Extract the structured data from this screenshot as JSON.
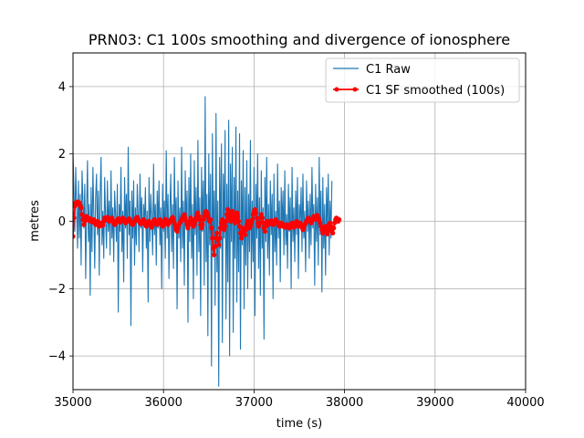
{
  "chart_data": {
    "type": "line",
    "title": "PRN03: C1 100s smoothing and divergence of ionosphere",
    "xlabel": "time (s)",
    "ylabel": "metres",
    "xlim": [
      35000,
      40000
    ],
    "ylim": [
      -5,
      5
    ],
    "xticks": [
      35000,
      36000,
      37000,
      38000,
      39000,
      40000
    ],
    "yticks": [
      -4,
      -2,
      0,
      2,
      4
    ],
    "grid": true,
    "legend_position": "top-right",
    "series": [
      {
        "name": "C1 Raw",
        "color": "#1f77b4",
        "style": "line",
        "x_start": 35000,
        "x_step": 10,
        "y": [
          2.1,
          0.9,
          -0.3,
          1.6,
          0.4,
          -0.8,
          1.2,
          -0.5,
          0.8,
          -1.3,
          1.5,
          0.6,
          -0.2,
          1.1,
          -1.7,
          0.3,
          1.8,
          -0.6,
          0.5,
          -2.2,
          1.0,
          -0.9,
          1.6,
          0.2,
          -1.4,
          0.7,
          1.4,
          -0.4,
          0.9,
          -1.6,
          0.8,
          1.9,
          -0.7,
          0.3,
          -1.1,
          1.3,
          0.1,
          -0.8,
          1.2,
          -0.3,
          0.6,
          -1.0,
          1.5,
          -0.5,
          0.4,
          -1.2,
          0.9,
          0.2,
          -0.6,
          1.1,
          -2.7,
          0.5,
          -0.3,
          1.6,
          -0.9,
          0.3,
          -1.8,
          1.3,
          -0.2,
          0.8,
          -1.1,
          2.2,
          -0.4,
          0.6,
          -3.1,
          0.9,
          -0.5,
          1.2,
          -1.3,
          0.4,
          -0.7,
          1.1,
          0.2,
          -0.9,
          1.4,
          -0.2,
          0.7,
          -1.5,
          0.5,
          -0.1,
          1.0,
          -0.8,
          0.3,
          -2.4,
          1.3,
          -0.6,
          0.8,
          0.1,
          -1.0,
          1.7,
          -0.4,
          0.5,
          -1.3,
          0.9,
          -0.2,
          1.2,
          -0.7,
          0.4,
          -2.0,
          1.1,
          -0.3,
          0.6,
          -1.1,
          2.1,
          -0.5,
          0.8,
          -1.7,
          0.3,
          1.4,
          -0.9,
          0.5,
          -1.4,
          1.9,
          -0.3,
          0.7,
          -2.6,
          1.2,
          -0.5,
          0.4,
          -1.2,
          2.2,
          -0.8,
          0.6,
          -1.9,
          1.5,
          -0.2,
          0.9,
          -3.0,
          1.3,
          -0.6,
          2.0,
          -1.1,
          0.5,
          -2.3,
          1.8,
          -0.4,
          1.0,
          -1.6,
          2.4,
          -0.9,
          0.7,
          -2.8,
          1.6,
          -0.3,
          1.2,
          -1.9,
          3.7,
          -1.2,
          0.8,
          -3.4,
          2.0,
          -0.7,
          1.4,
          -4.3,
          2.6,
          -1.0,
          0.9,
          -2.5,
          3.2,
          -1.5,
          0.6,
          -4.9,
          1.9,
          -0.8,
          2.3,
          -3.6,
          1.4,
          -0.5,
          2.7,
          -2.9,
          1.1,
          -1.8,
          3.0,
          -4.0,
          1.7,
          -0.6,
          2.2,
          -3.3,
          1.3,
          -1.1,
          2.8,
          -2.4,
          0.9,
          -1.5,
          2.6,
          -3.8,
          1.2,
          -0.7,
          2.1,
          -2.6,
          1.0,
          -1.3,
          1.8,
          -2.0,
          0.8,
          -0.9,
          2.4,
          -1.7,
          0.6,
          -1.2,
          1.6,
          -2.8,
          1.1,
          -0.5,
          2.0,
          -1.4,
          0.7,
          -2.2,
          1.5,
          -0.8,
          0.4,
          -3.5,
          1.3,
          -0.6,
          1.9,
          -1.1,
          0.5,
          -1.6,
          1.2,
          -0.4,
          0.8,
          -2.3,
          1.4,
          -0.9,
          0.3,
          -1.3,
          1.7,
          -0.5,
          0.6,
          -1.8,
          1.0,
          -0.2,
          0.9,
          -1.0,
          1.5,
          -0.7,
          0.2,
          -1.4,
          1.1,
          -0.3,
          0.7,
          -2.0,
          1.6,
          -0.6,
          0.4,
          -1.2,
          0.9,
          -0.4,
          1.3,
          -1.7,
          0.5,
          -0.1,
          1.0,
          -0.9,
          1.4,
          -0.5,
          0.3,
          -1.5,
          1.2,
          -0.3,
          0.6,
          -1.1,
          0.8,
          -0.7,
          1.6,
          -0.2,
          0.5,
          -1.9,
          1.1,
          -0.6,
          0.7,
          -1.3,
          1.9,
          -0.4,
          0.9,
          -2.1,
          1.3,
          -0.8,
          0.5,
          -1.6,
          1.0,
          -0.3,
          1.4,
          -1.0,
          0.6,
          -0.5,
          1.2
        ]
      },
      {
        "name": "C1 SF smoothed (100s)",
        "color": "#ff0000",
        "style": "line-marker",
        "x_start": 35000,
        "x_step": 10,
        "y": [
          -0.45,
          0.1,
          0.45,
          0.55,
          0.52,
          0.58,
          0.5,
          0.55,
          0.48,
          0.4,
          0.2,
          0.05,
          -0.1,
          0.0,
          0.12,
          0.15,
          0.1,
          0.05,
          0.02,
          0.08,
          0.05,
          -0.02,
          0.0,
          0.05,
          -0.05,
          -0.1,
          -0.05,
          0.0,
          -0.12,
          -0.15,
          -0.1,
          -0.05,
          -0.08,
          -0.12,
          0.0,
          0.1,
          0.05,
          0.08,
          0.12,
          0.05,
          0.0,
          0.02,
          0.08,
          0.1,
          0.02,
          -0.05,
          -0.1,
          -0.05,
          0.0,
          0.05,
          0.08,
          0.02,
          -0.03,
          0.0,
          0.05,
          0.1,
          0.05,
          0.0,
          -0.05,
          -0.02,
          0.0,
          0.05,
          0.08,
          0.05,
          -0.02,
          -0.08,
          -0.1,
          -0.05,
          0.0,
          0.05,
          0.1,
          0.12,
          0.05,
          0.0,
          -0.05,
          -0.08,
          -0.05,
          0.02,
          0.05,
          0.0,
          -0.1,
          -0.15,
          -0.1,
          -0.05,
          0.0,
          -0.05,
          -0.12,
          -0.18,
          -0.1,
          0.0,
          0.05,
          0.0,
          -0.05,
          -0.1,
          -0.05,
          0.02,
          0.05,
          -0.02,
          -0.1,
          -0.15,
          -0.08,
          0.0,
          0.06,
          0.02,
          -0.05,
          -0.1,
          -0.05,
          0.0,
          0.05,
          0.08,
          0.12,
          0.05,
          -0.05,
          -0.15,
          -0.25,
          -0.3,
          -0.2,
          -0.1,
          -0.05,
          0.0,
          0.05,
          0.1,
          0.15,
          0.2,
          0.1,
          0.0,
          -0.1,
          -0.2,
          -0.1,
          0.0,
          0.1,
          0.05,
          -0.05,
          -0.15,
          -0.1,
          0.0,
          0.1,
          0.2,
          0.25,
          0.15,
          0.05,
          -0.1,
          -0.2,
          -0.1,
          0.05,
          0.15,
          0.25,
          0.3,
          0.25,
          0.15,
          0.05,
          0.0,
          0.05,
          -0.2,
          -0.5,
          -0.8,
          -1.0,
          -0.75,
          -0.5,
          -0.35,
          -0.55,
          -0.7,
          -0.5,
          -0.2,
          -0.05,
          0.05,
          -0.1,
          -0.25,
          -0.15,
          0.0,
          0.2,
          0.35,
          0.25,
          0.1,
          0.0,
          0.15,
          0.3,
          0.2,
          0.05,
          -0.05,
          0.1,
          0.25,
          0.15,
          0.0,
          -0.15,
          -0.35,
          -0.5,
          -0.35,
          -0.2,
          -0.35,
          -0.4,
          -0.25,
          -0.1,
          0.0,
          -0.1,
          -0.2,
          -0.15,
          -0.05,
          0.05,
          0.2,
          0.3,
          0.35,
          0.25,
          0.1,
          -0.05,
          -0.15,
          -0.05,
          0.1,
          0.2,
          0.1,
          -0.05,
          -0.2,
          -0.3,
          -0.15,
          0.0,
          -0.05,
          -0.1,
          -0.05,
          0.0,
          0.02,
          -0.05,
          -0.1,
          -0.05,
          0.0,
          0.05,
          0.0,
          -0.05,
          -0.1,
          -0.15,
          -0.1,
          -0.05,
          -0.1,
          -0.15,
          -0.1,
          -0.12,
          -0.18,
          -0.15,
          -0.1,
          -0.15,
          -0.2,
          -0.15,
          -0.1,
          -0.05,
          -0.1,
          -0.18,
          -0.12,
          -0.05,
          0.0,
          -0.08,
          -0.15,
          -0.1,
          -0.05,
          -0.1,
          -0.18,
          -0.25,
          -0.2,
          -0.1,
          -0.05,
          0.0,
          0.05,
          0.1,
          0.05,
          0.0,
          -0.05,
          0.02,
          0.08,
          0.15,
          0.12,
          0.05,
          0.1,
          0.18,
          0.12,
          0.05,
          -0.05,
          -0.15,
          -0.25,
          -0.35,
          -0.3,
          -0.2,
          -0.15,
          -0.3,
          -0.38,
          -0.25,
          -0.1,
          -0.05,
          -0.15,
          -0.3,
          -0.35,
          -0.2,
          -0.05,
          0.05,
          0.1,
          0.05,
          0.0,
          0.05
        ]
      }
    ]
  }
}
